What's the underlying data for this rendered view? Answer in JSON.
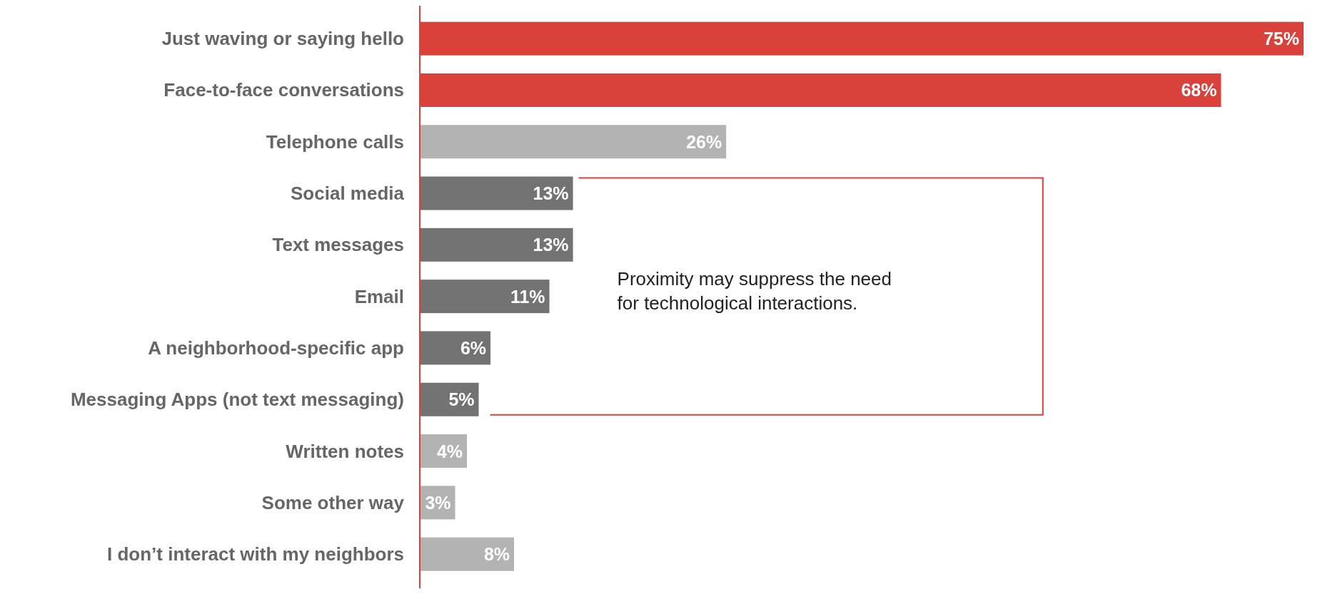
{
  "chart_data": {
    "type": "bar",
    "orientation": "horizontal",
    "categories": [
      "Just waving or saying hello",
      "Face-to-face conversations",
      "Telephone calls",
      "Social media",
      "Text messages",
      "Email",
      "A neighborhood-specific app",
      "Messaging Apps (not text messaging)",
      "Written notes",
      "Some other way",
      "I don’t interact with my neighbors"
    ],
    "values": [
      75,
      68,
      26,
      13,
      13,
      11,
      6,
      5,
      4,
      3,
      8
    ],
    "colors": [
      "#d9413a",
      "#d9413a",
      "#b3b3b3",
      "#737373",
      "#737373",
      "#737373",
      "#737373",
      "#737373",
      "#b3b3b3",
      "#b3b3b3",
      "#b3b3b3"
    ],
    "value_labels": [
      "75%",
      "68%",
      "26%",
      "13%",
      "13%",
      "11%",
      "6%",
      "5%",
      "4%",
      "3%",
      "8%"
    ],
    "annotations": [
      "Proximity may suppress the need for technological interactions."
    ]
  }
}
